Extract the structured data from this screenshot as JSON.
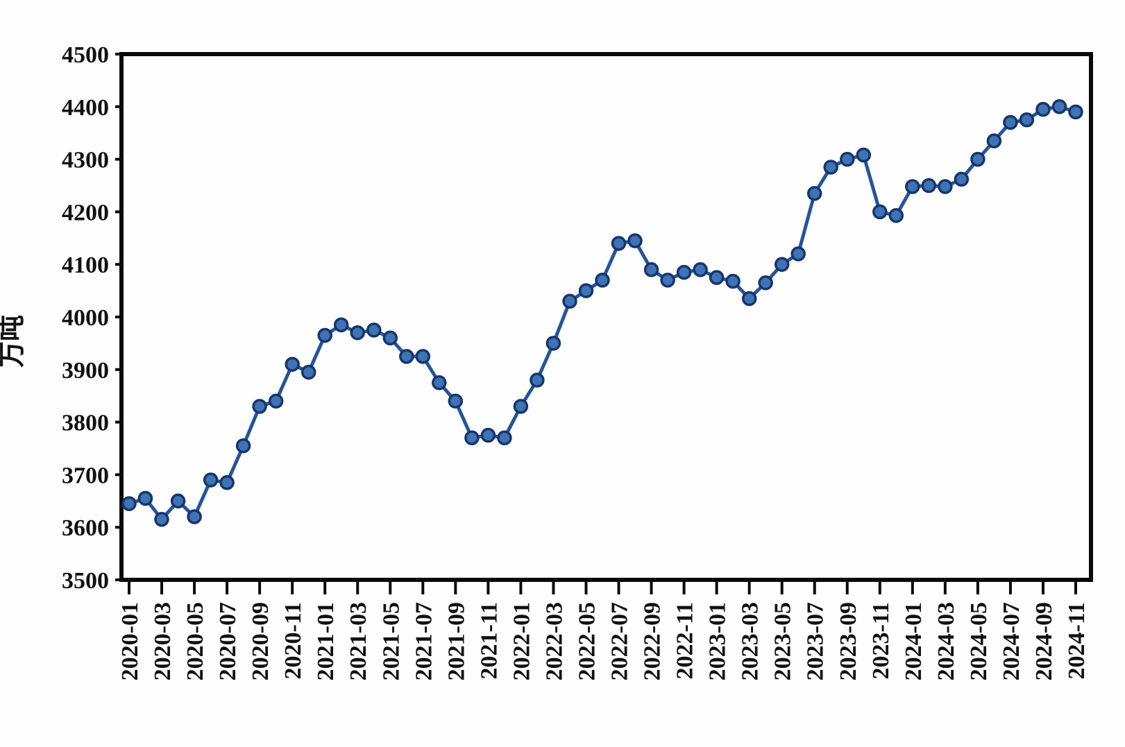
{
  "chart_data": {
    "type": "line",
    "title": "",
    "xlabel": "",
    "ylabel": "万吨",
    "ylim": [
      3500,
      4500
    ],
    "ytick_step": 100,
    "yticks": [
      3500,
      3600,
      3700,
      3800,
      3900,
      4000,
      4100,
      4200,
      4300,
      4400,
      4500
    ],
    "x_label_every": 2,
    "grid": false,
    "legend": false,
    "line_color": "#24549c",
    "marker_fill": "#3e73b6",
    "marker_stroke": "#17356b",
    "axis_color": "#0a0a0a",
    "x": [
      "2020-01",
      "2020-02",
      "2020-03",
      "2020-04",
      "2020-05",
      "2020-06",
      "2020-07",
      "2020-08",
      "2020-09",
      "2020-10",
      "2020-11",
      "2020-12",
      "2021-01",
      "2021-02",
      "2021-03",
      "2021-04",
      "2021-05",
      "2021-06",
      "2021-07",
      "2021-08",
      "2021-09",
      "2021-10",
      "2021-11",
      "2021-12",
      "2022-01",
      "2022-02",
      "2022-03",
      "2022-04",
      "2022-05",
      "2022-06",
      "2022-07",
      "2022-08",
      "2022-09",
      "2022-10",
      "2022-11",
      "2022-12",
      "2023-01",
      "2023-02",
      "2023-03",
      "2023-04",
      "2023-05",
      "2023-06",
      "2023-07",
      "2023-08",
      "2023-09",
      "2023-10",
      "2023-11",
      "2023-12",
      "2024-01",
      "2024-02",
      "2024-03",
      "2024-04",
      "2024-05",
      "2024-06",
      "2024-07",
      "2024-08",
      "2024-09",
      "2024-10",
      "2024-11"
    ],
    "values": [
      3645,
      3655,
      3615,
      3650,
      3620,
      3690,
      3685,
      3755,
      3830,
      3840,
      3910,
      3895,
      3965,
      3985,
      3970,
      3975,
      3960,
      3925,
      3925,
      3875,
      3840,
      3770,
      3775,
      3770,
      3830,
      3880,
      3950,
      4030,
      4050,
      4070,
      4140,
      4145,
      4090,
      4070,
      4085,
      4090,
      4075,
      4068,
      4035,
      4065,
      4100,
      4120,
      4235,
      4285,
      4300,
      4308,
      4200,
      4193,
      4248,
      4250,
      4248,
      4262,
      4300,
      4335,
      4370,
      4375,
      4395,
      4400,
      4390
    ]
  }
}
